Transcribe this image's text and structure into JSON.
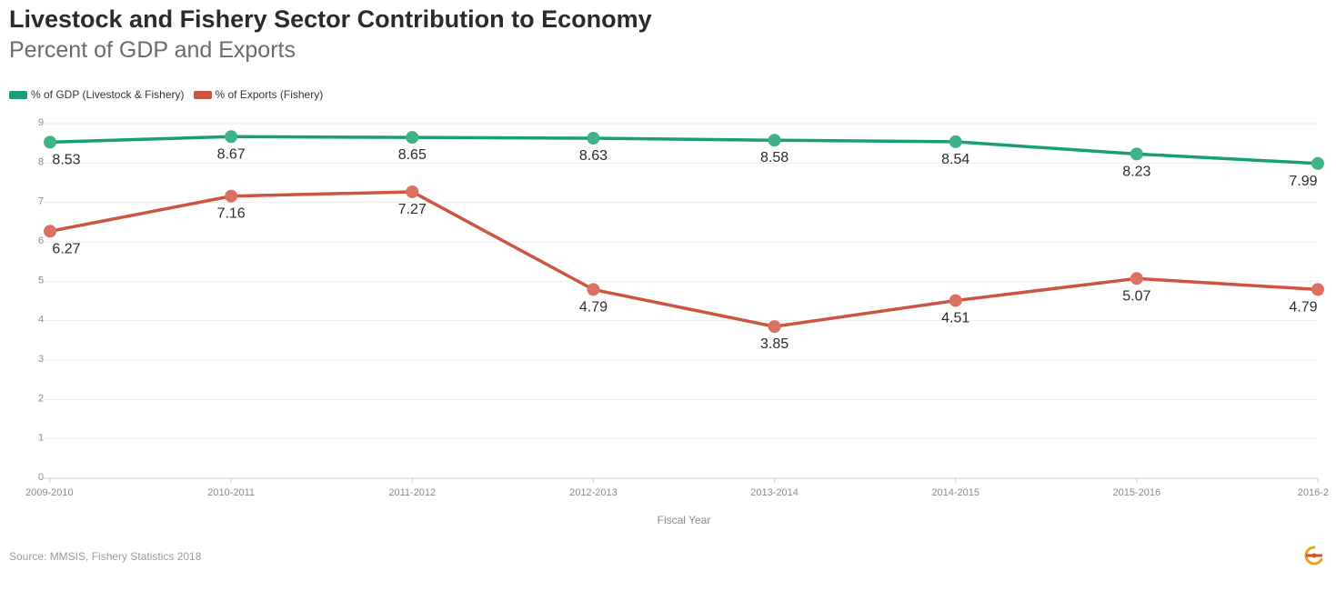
{
  "header": {
    "title": "Livestock and Fishery Sector Contribution to Economy",
    "subtitle": "Percent of GDP and Exports"
  },
  "legend": [
    {
      "label": "% of GDP (Livestock & Fishery)",
      "color": "#1a9e77"
    },
    {
      "label": "% of Exports (Fishery)",
      "color": "#cc5440"
    }
  ],
  "source": "Source: MMSIS, Fishery Statistics 2018",
  "chart_data": {
    "type": "line",
    "xlabel": "Fiscal Year",
    "ylabel": "",
    "ylim": [
      0,
      9
    ],
    "yticks": [
      0,
      1,
      2,
      3,
      4,
      5,
      6,
      7,
      8,
      9
    ],
    "grid": true,
    "legend_position": "top-left",
    "categories": [
      "2009-2010",
      "2010-2011",
      "2011-2012",
      "2012-2013",
      "2013-2014",
      "2014-2015",
      "2015-2016",
      "2016-2"
    ],
    "series": [
      {
        "name": "% of GDP (Livestock & Fishery)",
        "color": "#1a9e77",
        "marker_color": "#3fb386",
        "values": [
          8.53,
          8.67,
          8.65,
          8.63,
          8.58,
          8.54,
          8.23,
          7.99
        ],
        "labels": [
          "8.53",
          "8.67",
          "8.65",
          "8.63",
          "8.58",
          "8.54",
          "8.23",
          "7.99"
        ]
      },
      {
        "name": "% of Exports (Fishery)",
        "color": "#cc5440",
        "marker_color": "#dc7063",
        "values": [
          6.27,
          7.16,
          7.27,
          4.79,
          3.85,
          4.51,
          5.07,
          4.79
        ],
        "labels": [
          "6.27",
          "7.16",
          "7.27",
          "4.79",
          "3.85",
          "4.51",
          "5.07",
          "4.79"
        ]
      }
    ]
  }
}
